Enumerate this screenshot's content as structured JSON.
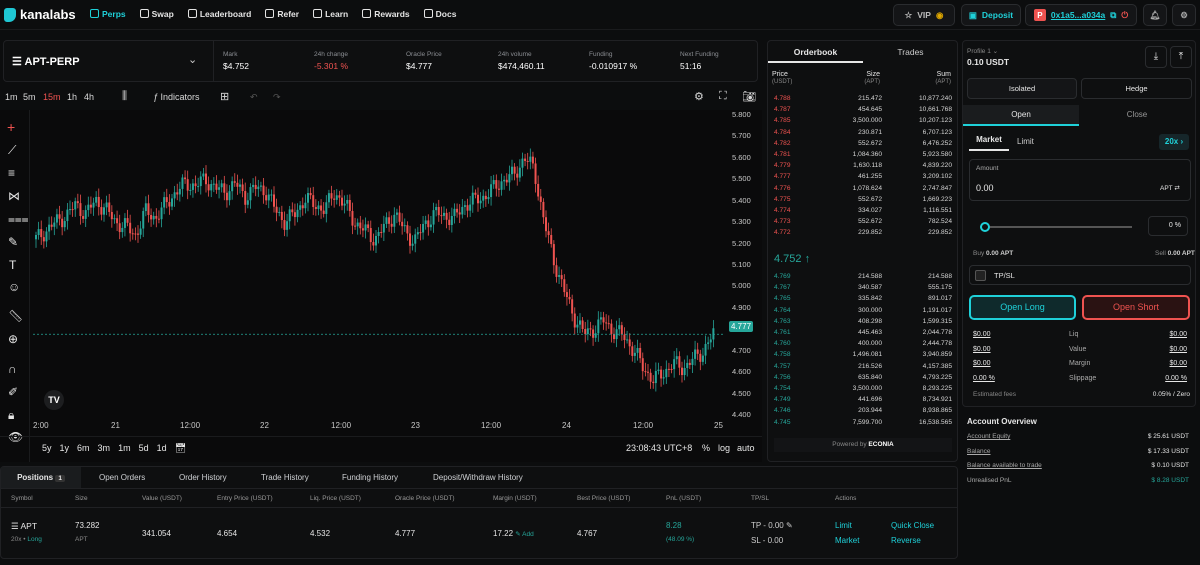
{
  "brand": "kanalabs",
  "nav": [
    {
      "label": "Perps"
    },
    {
      "label": "Swap"
    },
    {
      "label": "Leaderboard"
    },
    {
      "label": "Refer"
    },
    {
      "label": "Learn"
    },
    {
      "label": "Rewards"
    },
    {
      "label": "Docs"
    }
  ],
  "top": {
    "vip": "VIP",
    "deposit": "Deposit",
    "wallet": "0x1a5...a034a"
  },
  "market": {
    "symbol": "APT-PERP",
    "stats": [
      {
        "label": "Mark",
        "value": "$4.752"
      },
      {
        "label": "24h change",
        "value": "-5.301 %"
      },
      {
        "label": "Oracle Price",
        "value": "$4.777"
      },
      {
        "label": "24h volume",
        "value": "$474,460.11"
      },
      {
        "label": "Funding",
        "value": "-0.010917 %"
      },
      {
        "label": "Next Funding",
        "value": "51:16"
      }
    ]
  },
  "toolbar": {
    "timeframes": [
      "1m",
      "5m",
      "15m",
      "1h",
      "4h"
    ],
    "indicators": "Indicators"
  },
  "chart": {
    "yticks": [
      "5.800",
      "5.700",
      "5.600",
      "5.500",
      "5.400",
      "5.300",
      "5.200",
      "5.100",
      "5.000",
      "4.900",
      "4.800",
      "4.700",
      "4.600",
      "4.500",
      "4.400"
    ],
    "xticks": [
      "2:00",
      "21",
      "12:00",
      "22",
      "12:00",
      "23",
      "12:00",
      "24",
      "12:00",
      "25"
    ],
    "last_price": "4.777",
    "ranges": [
      "5y",
      "1y",
      "6m",
      "3m",
      "1m",
      "5d",
      "1d"
    ],
    "clock": "23:08:43 UTC+8",
    "pct": "%",
    "log": "log",
    "auto": "auto"
  },
  "chart_data": {
    "type": "line",
    "y_range": [
      4.4,
      5.8
    ],
    "close": [
      5.22,
      5.26,
      5.3,
      5.33,
      5.38,
      5.34,
      5.4,
      5.36,
      5.3,
      5.28,
      5.24,
      5.35,
      5.32,
      5.38,
      5.44,
      5.48,
      5.47,
      5.5,
      5.46,
      5.44,
      5.48,
      5.42,
      5.46,
      5.45,
      5.36,
      5.3,
      5.34,
      5.41,
      5.38,
      5.36,
      5.44,
      5.38,
      5.3,
      5.26,
      5.22,
      5.28,
      5.34,
      5.26,
      5.21,
      5.29,
      5.34,
      5.33,
      5.32,
      5.38,
      5.4,
      5.42,
      5.46,
      5.5,
      5.52,
      5.6,
      5.55,
      5.3,
      5.12,
      4.98,
      4.86,
      4.78,
      4.8,
      4.84,
      4.79,
      4.77,
      4.7,
      4.62,
      4.56,
      4.6,
      4.64,
      4.62,
      4.66,
      4.7,
      4.777
    ]
  },
  "orderbook": {
    "tabs": [
      "Orderbook",
      "Trades"
    ],
    "head": [
      "Price",
      "Size",
      "Sum"
    ],
    "unit": [
      "(USDT)",
      "(APT)",
      "(APT)"
    ],
    "asks": [
      [
        "4.788",
        "215.472",
        "10,877.240"
      ],
      [
        "4.787",
        "454.645",
        "10,661.768"
      ],
      [
        "4.785",
        "3,500.000",
        "10,207.123"
      ],
      [
        "4.784",
        "230.871",
        "6,707.123"
      ],
      [
        "4.782",
        "552.672",
        "6,476.252"
      ],
      [
        "4.781",
        "1,084.360",
        "5,923.580"
      ],
      [
        "4.779",
        "1,630.118",
        "4,839.220"
      ],
      [
        "4.777",
        "461.255",
        "3,209.102"
      ],
      [
        "4.776",
        "1,078.624",
        "2,747.847"
      ],
      [
        "4.775",
        "552.672",
        "1,669.223"
      ],
      [
        "4.774",
        "334.027",
        "1,116.551"
      ],
      [
        "4.773",
        "552.672",
        "782.524"
      ],
      [
        "4.772",
        "229.852",
        "229.852"
      ]
    ],
    "mid": "4.752 ↑",
    "bids": [
      [
        "4.769",
        "214.588",
        "214.588"
      ],
      [
        "4.767",
        "340.587",
        "555.175"
      ],
      [
        "4.765",
        "335.842",
        "891.017"
      ],
      [
        "4.764",
        "300.000",
        "1,191.017"
      ],
      [
        "4.763",
        "408.298",
        "1,599.315"
      ],
      [
        "4.761",
        "445.463",
        "2,044.778"
      ],
      [
        "4.760",
        "400.000",
        "2,444.778"
      ],
      [
        "4.758",
        "1,496.081",
        "3,940.859"
      ],
      [
        "4.757",
        "216.526",
        "4,157.385"
      ],
      [
        "4.756",
        "635.840",
        "4,793.225"
      ],
      [
        "4.754",
        "3,500.000",
        "8,293.225"
      ],
      [
        "4.749",
        "441.696",
        "8,734.921"
      ],
      [
        "4.746",
        "203.944",
        "8,938.865"
      ],
      [
        "4.745",
        "7,599.700",
        "16,538.565"
      ]
    ],
    "powered": "Powered by",
    "powered_brand": "ECONIA"
  },
  "trade": {
    "profile": "Profile 1",
    "balance": "0.10 USDT",
    "isolated": "Isolated",
    "hedge": "Hedge",
    "open": "Open",
    "close": "Close",
    "market": "Market",
    "limit": "Limit",
    "lev": "20x",
    "amount_label": "Amount",
    "amount": "0.00",
    "unit": "APT",
    "pct": "0",
    "buy": "Buy",
    "buy_val": "0.00 APT",
    "sell": "Sell",
    "sell_val": "0.00 APT",
    "tpsl": "TP/SL",
    "long": "Open Long",
    "short": "Open Short",
    "info": [
      [
        "$0.00",
        "Liq",
        "$0.00"
      ],
      [
        "$0.00",
        "Value",
        "$0.00"
      ],
      [
        "$0.00",
        "Margin",
        "$0.00"
      ],
      [
        "0.00 %",
        "Slippage",
        "0.00 %"
      ]
    ],
    "fees_label": "Estimated fees",
    "fees": "0.05% / Zero"
  },
  "account": {
    "title": "Account Overview",
    "rows": [
      [
        "Account Equity",
        "$ 25.61 USDT"
      ],
      [
        "Balance",
        "$ 17.33 USDT"
      ],
      [
        "Balance available to trade",
        "$ 0.10 USDT"
      ],
      [
        "Unrealised PnL",
        "$ 8.28 USDT"
      ]
    ]
  },
  "bottom": {
    "tabs": [
      "Positions",
      "Open Orders",
      "Order History",
      "Trade History",
      "Funding History",
      "Deposit/Withdraw History"
    ],
    "count": "1",
    "cols": [
      "Symbol",
      "Size",
      "Value (USDT)",
      "Entry Price (USDT)",
      "Liq. Price (USDT)",
      "Oracle Price (USDT)",
      "Margin (USDT)",
      "Best Price (USDT)",
      "PnL (USDT)",
      "TP/SL",
      "Actions"
    ],
    "row": {
      "symbol": "APT",
      "lev": "20x",
      "side": "Long",
      "size": "73.282",
      "size_unit": "APT",
      "value": "341.054",
      "entry": "4.654",
      "liq": "4.532",
      "oracle": "4.777",
      "margin": "17.22",
      "add": "Add",
      "best": "4.767",
      "pnl": "8.28",
      "pnl_pct": "(48.09 %)",
      "tp": "TP - 0.00",
      "sl": "SL - 0.00",
      "a1": "Limit",
      "a2": "Market",
      "a3": "Quick Close",
      "a4": "Reverse"
    }
  },
  "colors": {
    "accent": "#1fd1d9",
    "up": "#26a69a",
    "down": "#ef5350"
  }
}
